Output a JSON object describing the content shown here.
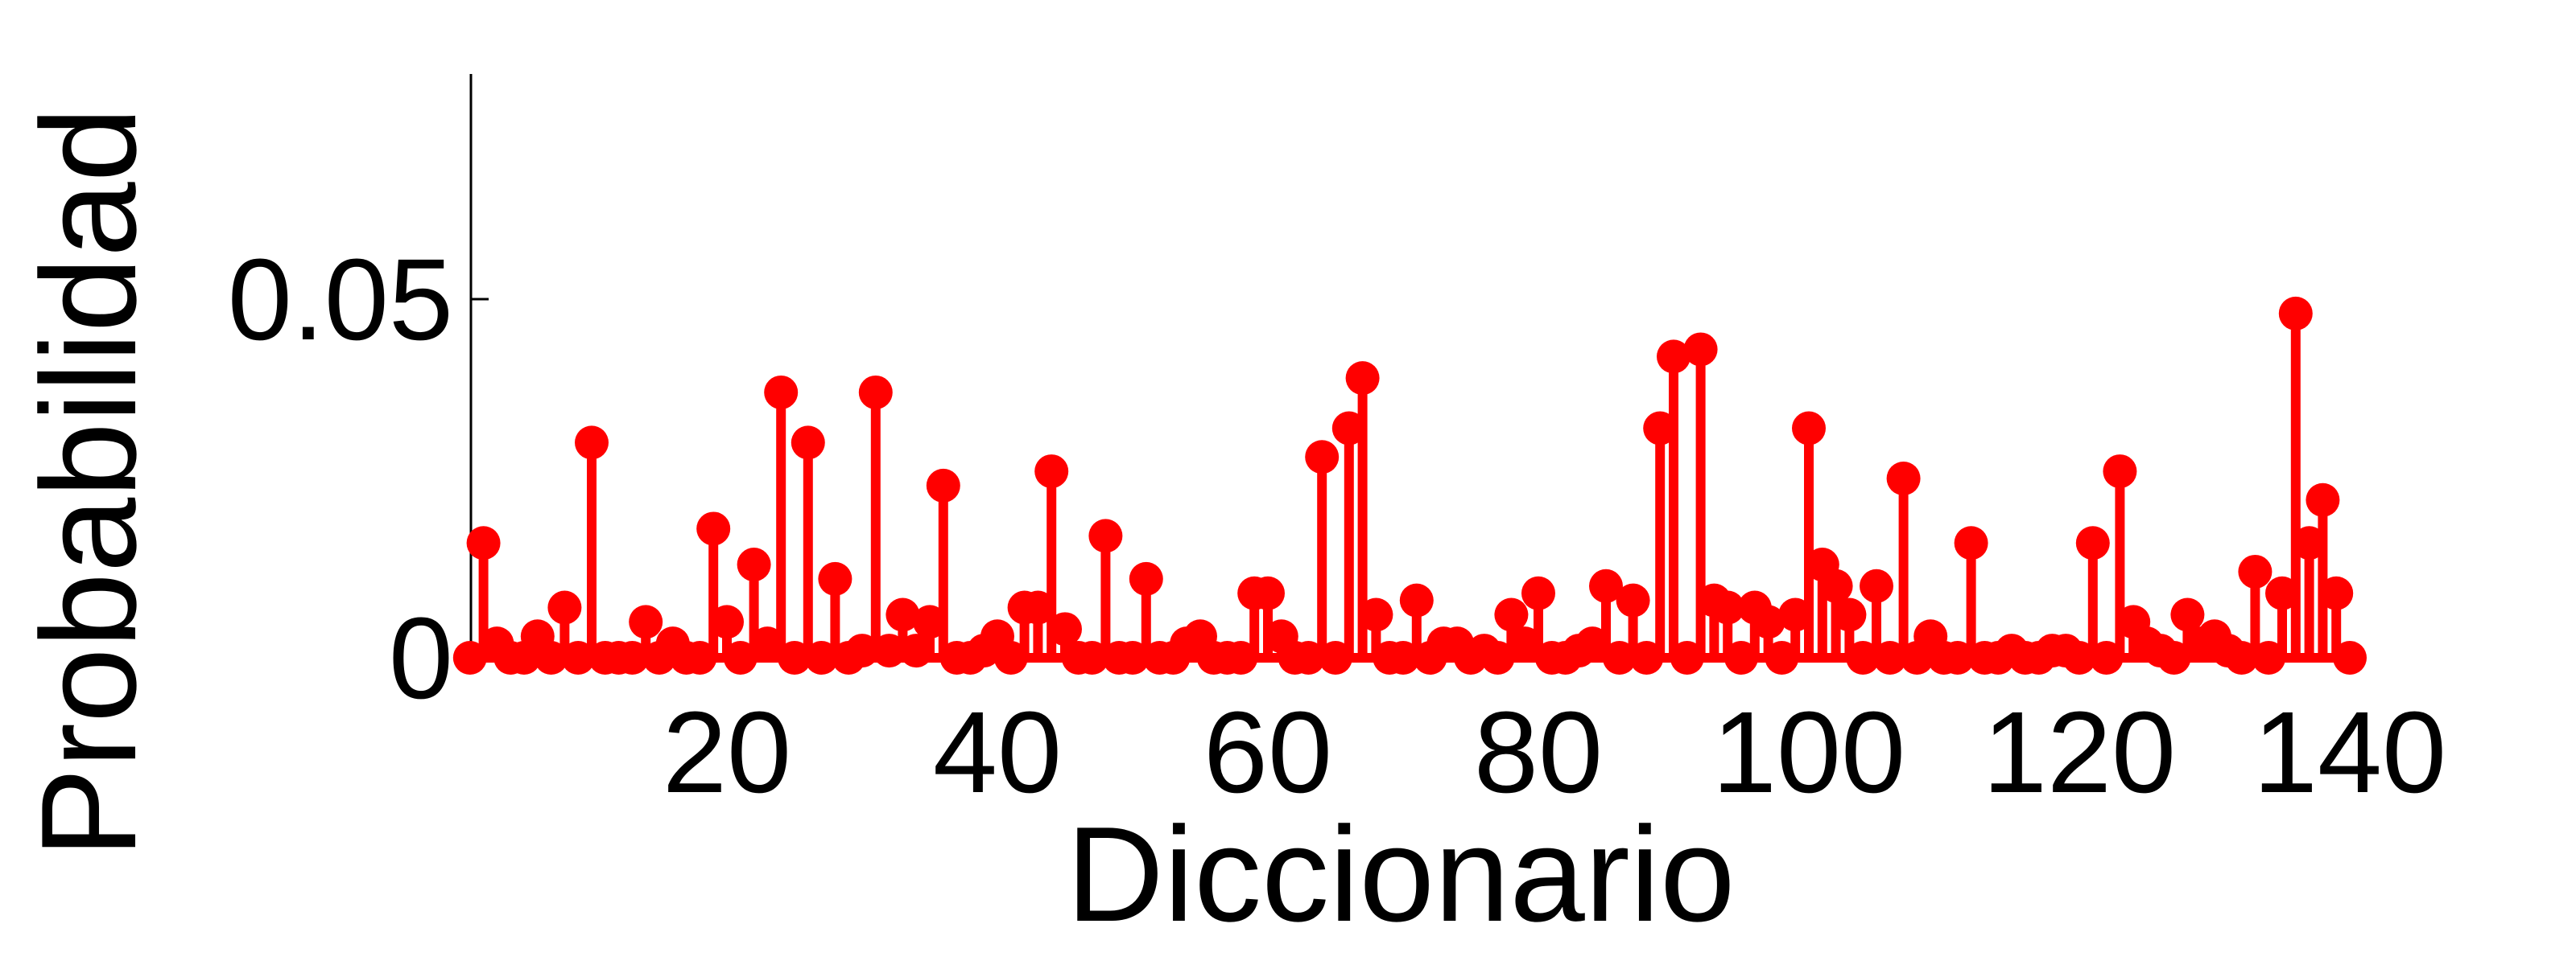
{
  "chart_data": {
    "type": "stem",
    "xlabel": "Diccionario",
    "ylabel": "Probabilidad",
    "xlim": [
      0,
      140
    ],
    "ylim": [
      0,
      0.08
    ],
    "x_ticks": [
      20,
      40,
      60,
      80,
      100,
      120,
      140
    ],
    "y_ticks": [
      0,
      0.05
    ],
    "y_tick_labels": [
      "0",
      "0.05"
    ],
    "grid": false,
    "series": [
      {
        "color": "#ff0000",
        "x": [
          1,
          2,
          3,
          4,
          5,
          6,
          7,
          8,
          9,
          10,
          11,
          12,
          13,
          14,
          15,
          16,
          17,
          18,
          19,
          20,
          21,
          22,
          23,
          24,
          25,
          26,
          27,
          28,
          29,
          30,
          31,
          32,
          33,
          34,
          35,
          36,
          37,
          38,
          39,
          40,
          41,
          42,
          43,
          44,
          45,
          46,
          47,
          48,
          49,
          50,
          51,
          52,
          53,
          54,
          55,
          56,
          57,
          58,
          59,
          60,
          61,
          62,
          63,
          64,
          65,
          66,
          67,
          68,
          69,
          70,
          71,
          72,
          73,
          74,
          75,
          76,
          77,
          78,
          79,
          80,
          81,
          82,
          83,
          84,
          85,
          86,
          87,
          88,
          89,
          90,
          91,
          92,
          93,
          94,
          95,
          96,
          97,
          98,
          99,
          100,
          101,
          102,
          103,
          104,
          105,
          106,
          107,
          108,
          109,
          110,
          111,
          112,
          113,
          114,
          115,
          116,
          117,
          118,
          119,
          120,
          121,
          122,
          123,
          124,
          125,
          126,
          127,
          128,
          129,
          130,
          131,
          132,
          133,
          134,
          135,
          136,
          137,
          138,
          139,
          140
        ],
        "values": [
          0,
          0.016,
          0.002,
          0,
          0,
          0.003,
          0,
          0.007,
          0,
          0.03,
          0,
          0,
          0,
          0.005,
          0,
          0.002,
          0,
          0,
          0.018,
          0.005,
          0,
          0.013,
          0.002,
          0.037,
          0,
          0.03,
          0,
          0.011,
          0,
          0.001,
          0.037,
          0.001,
          0.006,
          0.001,
          0.005,
          0.024,
          0,
          0,
          0.001,
          0.003,
          0,
          0.007,
          0.007,
          0.026,
          0.004,
          0,
          0,
          0.017,
          0,
          0,
          0.011,
          0,
          0,
          0.002,
          0.003,
          0,
          0,
          0,
          0.009,
          0.009,
          0.003,
          0,
          0,
          0.028,
          0,
          0.032,
          0.039,
          0.006,
          0,
          0,
          0.008,
          0,
          0.002,
          0.002,
          0,
          0.001,
          0,
          0.006,
          0.002,
          0.009,
          0,
          0,
          0.001,
          0.002,
          0.01,
          0,
          0.008,
          0,
          0.032,
          0.042,
          0,
          0.043,
          0.008,
          0.007,
          0,
          0.007,
          0.005,
          0,
          0.006,
          0.032,
          0.013,
          0.01,
          0.006,
          0,
          0.01,
          0,
          0.025,
          0,
          0.003,
          0,
          0,
          0.016,
          0,
          0,
          0.001,
          0,
          0,
          0.001,
          0.001,
          0,
          0.016,
          0,
          0.026,
          0.005,
          0.002,
          0.001,
          0,
          0.006,
          0.002,
          0.003,
          0.001,
          0,
          0.012,
          0,
          0.009,
          0.048,
          0.016,
          0.022,
          0.009,
          0
        ]
      }
    ]
  }
}
